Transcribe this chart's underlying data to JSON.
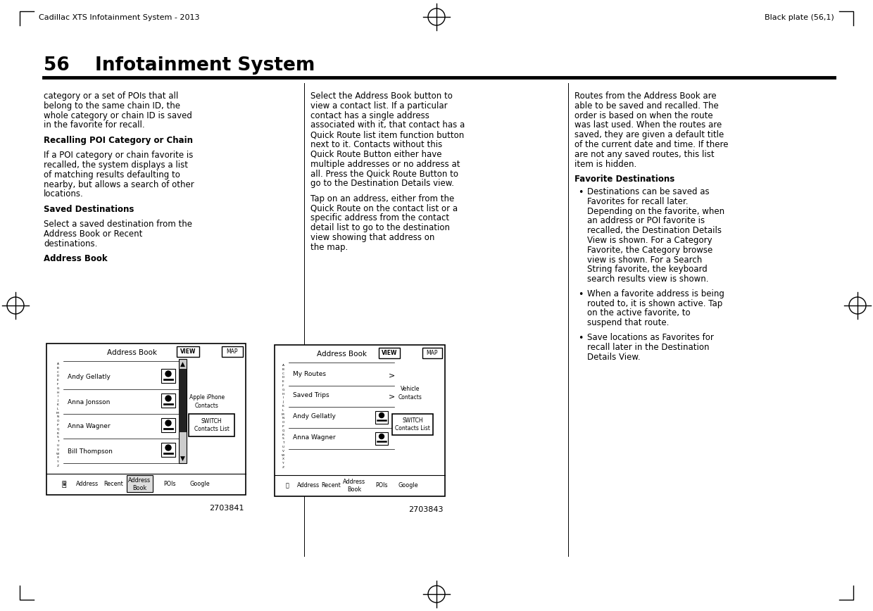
{
  "page_width": 12.4,
  "page_height": 8.68,
  "bg_color": "#ffffff",
  "header_left": "Cadillac XTS Infotainment System - 2013",
  "header_right": "Black plate (56,1)",
  "page_number": "56",
  "page_title": "Infotainment System",
  "col1_lines": [
    "category or a set of POIs that all",
    "belong to the same chain ID, the",
    "whole category or chain ID is saved",
    "in the favorite for recall.",
    "",
    "Recalling POI Category or Chain",
    "",
    "If a POI category or chain favorite is",
    "recalled, the system displays a list",
    "of matching results defaulting to",
    "nearby, but allows a search of other",
    "locations.",
    "",
    "Saved Destinations",
    "",
    "Select a saved destination from the",
    "Address Book or Recent",
    "destinations.",
    "",
    "Address Book"
  ],
  "col1_bold_idx": [
    5,
    13,
    19
  ],
  "col2_lines": [
    "Select the Address Book button to",
    "view a contact list. If a particular",
    "contact has a single address",
    "associated with it, that contact has a",
    "Quick Route list item function button",
    "next to it. Contacts without this",
    "Quick Route Button either have",
    "multiple addresses or no address at",
    "all. Press the Quick Route Button to",
    "go to the Destination Details view.",
    "",
    "Tap on an address, either from the",
    "Quick Route on the contact list or a",
    "specific address from the contact",
    "detail list to go to the destination",
    "view showing that address on",
    "the map."
  ],
  "col3_top_lines": [
    "Routes from the Address Book are",
    "able to be saved and recalled. The",
    "order is based on when the route",
    "was last used. When the routes are",
    "saved, they are given a default title",
    "of the current date and time. If there",
    "are not any saved routes, this list",
    "item is hidden."
  ],
  "col3_heading": "Favorite Destinations",
  "col3_bullets": [
    [
      "Destinations can be saved as",
      "Favorites for recall later.",
      "Depending on the favorite, when",
      "an address or POI favorite is",
      "recalled, the Destination Details",
      "View is shown. For a Category",
      "Favorite, the Category browse",
      "view is shown. For a Search",
      "String favorite, the keyboard",
      "search results view is shown."
    ],
    [
      "When a favorite address is being",
      "routed to, it is shown active. Tap",
      "on the active favorite, to",
      "suspend that route."
    ],
    [
      "Save locations as Favorites for",
      "recall later in the Destination",
      "Details View."
    ]
  ],
  "fig1_number": "2703841",
  "fig2_number": "2703843",
  "contact_names1": [
    "Andy Gellatly",
    "Anna Jonsson",
    "Anna Wagner",
    "Bill Thompson"
  ],
  "contact_names2": [
    "My Routes",
    "Saved Trips",
    "Andy Gellatly",
    "Anna Wagner"
  ]
}
